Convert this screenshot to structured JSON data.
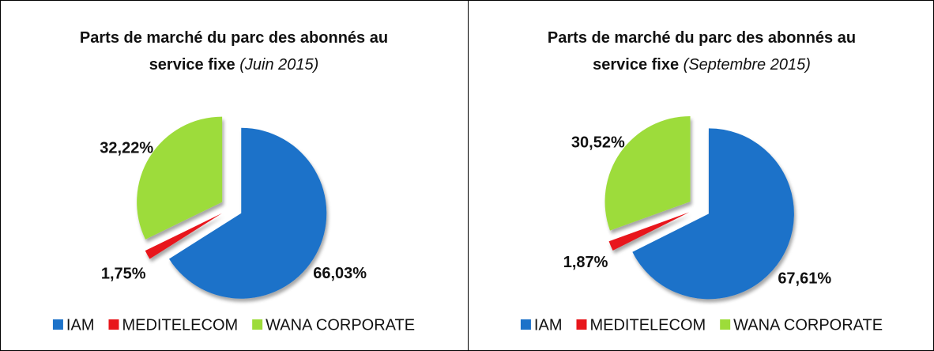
{
  "chart_data": [
    {
      "type": "pie",
      "title": "Parts de marché du parc des abonnés au service fixe",
      "subtitle": "(Juin 2015)",
      "categories": [
        "IAM",
        "MEDITELECOM",
        "WANA CORPORATE"
      ],
      "values": [
        66.03,
        1.75,
        32.22
      ],
      "value_labels": [
        "66,03%",
        "1,75%",
        "32,22%"
      ],
      "colors": [
        "#1c72c9",
        "#e8161b",
        "#9ddc3a"
      ]
    },
    {
      "type": "pie",
      "title": "Parts de marché du parc des abonnés au service fixe",
      "subtitle": "(Septembre 2015)",
      "categories": [
        "IAM",
        "MEDITELECOM",
        "WANA CORPORATE"
      ],
      "values": [
        67.61,
        1.87,
        30.52
      ],
      "value_labels": [
        "67,61%",
        "1,87%",
        "30,52%"
      ],
      "colors": [
        "#1c72c9",
        "#e8161b",
        "#9ddc3a"
      ]
    }
  ]
}
